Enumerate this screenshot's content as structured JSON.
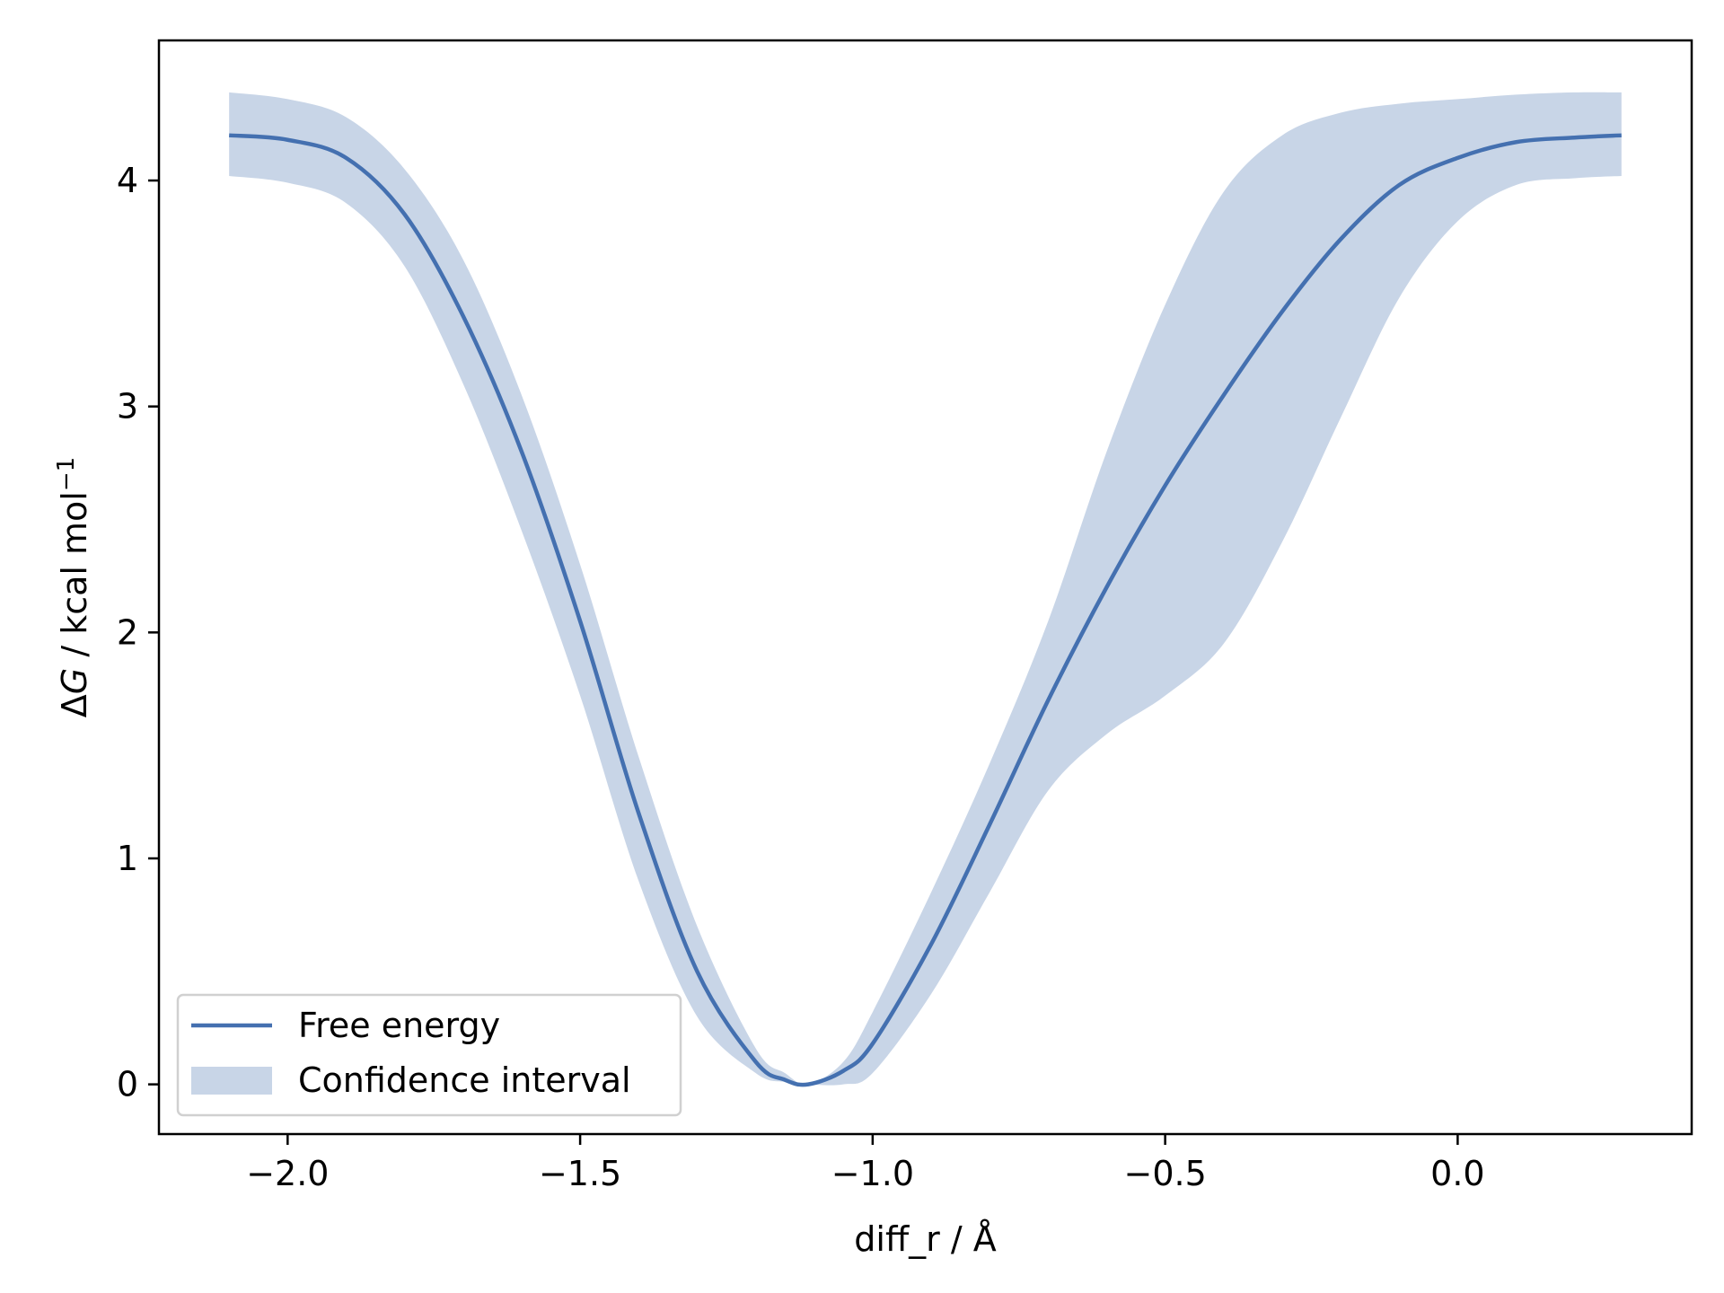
{
  "chart_data": {
    "type": "line",
    "xlabel": "diff_r / Å",
    "ylabel_prefix": "Δ",
    "ylabel_var": "G",
    "ylabel_rest": " / kcal mol",
    "ylabel_sup": "−1",
    "xlim": [
      -2.22,
      0.4
    ],
    "ylim": [
      -0.22,
      4.62
    ],
    "x_ticks": [
      -2.0,
      -1.5,
      -1.0,
      -0.5,
      0.0
    ],
    "x_tick_labels": [
      "−2.0",
      "−1.5",
      "−1.0",
      "−0.5",
      "0.0"
    ],
    "y_ticks": [
      0,
      1,
      2,
      3,
      4
    ],
    "y_tick_labels": [
      "0",
      "1",
      "2",
      "3",
      "4"
    ],
    "grid": false,
    "legend_position": "lower-left",
    "colors": {
      "line": "#4470b0",
      "band": "#c8d5e7",
      "frame": "#000000"
    },
    "series": [
      {
        "name": "Free energy",
        "kind": "line",
        "x": [
          -2.1,
          -2.0,
          -1.9,
          -1.8,
          -1.7,
          -1.6,
          -1.5,
          -1.4,
          -1.3,
          -1.2,
          -1.15,
          -1.11,
          -1.05,
          -1.0,
          -0.9,
          -0.8,
          -0.7,
          -0.6,
          -0.5,
          -0.4,
          -0.3,
          -0.2,
          -0.1,
          0.0,
          0.1,
          0.2,
          0.28
        ],
        "y": [
          4.2,
          4.18,
          4.1,
          3.85,
          3.4,
          2.8,
          2.05,
          1.2,
          0.5,
          0.1,
          0.02,
          0.0,
          0.06,
          0.18,
          0.62,
          1.15,
          1.7,
          2.2,
          2.65,
          3.05,
          3.42,
          3.74,
          3.98,
          4.1,
          4.17,
          4.19,
          4.2
        ]
      },
      {
        "name": "Confidence interval",
        "kind": "band",
        "x": [
          -2.1,
          -2.0,
          -1.9,
          -1.8,
          -1.7,
          -1.6,
          -1.5,
          -1.4,
          -1.3,
          -1.2,
          -1.15,
          -1.11,
          -1.05,
          -1.0,
          -0.9,
          -0.8,
          -0.7,
          -0.6,
          -0.5,
          -0.4,
          -0.3,
          -0.2,
          -0.1,
          0.0,
          0.1,
          0.2,
          0.28
        ],
        "lower": [
          4.02,
          3.99,
          3.9,
          3.62,
          3.1,
          2.45,
          1.72,
          0.9,
          0.3,
          0.05,
          0.01,
          0.0,
          0.0,
          0.05,
          0.4,
          0.85,
          1.3,
          1.55,
          1.72,
          1.95,
          2.4,
          2.95,
          3.48,
          3.82,
          3.98,
          4.01,
          4.02
        ],
        "upper": [
          4.39,
          4.36,
          4.28,
          4.05,
          3.65,
          3.05,
          2.3,
          1.45,
          0.7,
          0.16,
          0.05,
          0.0,
          0.1,
          0.32,
          0.85,
          1.42,
          2.05,
          2.8,
          3.45,
          3.95,
          4.2,
          4.3,
          4.34,
          4.36,
          4.38,
          4.39,
          4.39
        ]
      }
    ]
  }
}
